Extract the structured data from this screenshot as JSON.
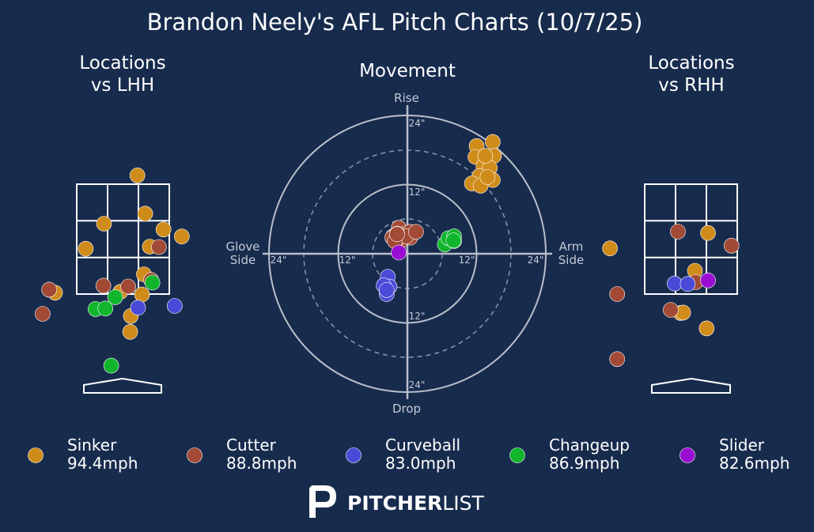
{
  "title": "Brandon Neely's AFL Pitch Charts (10/7/25)",
  "panels": {
    "lhh_title": [
      "Locations",
      "vs LHH"
    ],
    "movement_title": "Movement",
    "rhh_title": [
      "Locations",
      "vs RHH"
    ]
  },
  "movement_axes": {
    "top": "Rise",
    "bottom": "Drop",
    "left": [
      "Glove",
      "Side"
    ],
    "right": [
      "Arm",
      "Side"
    ],
    "ring_labels": [
      "12\"",
      "24\""
    ]
  },
  "colors": {
    "background": "#172b4d",
    "Sinker": "#d08c1a",
    "Cutter": "#a24a35",
    "Curveball": "#4a4ad8",
    "Changeup": "#10b52c",
    "Slider": "#9a0ed4"
  },
  "legend": [
    {
      "pitch": "Sinker",
      "velo": "94.4mph"
    },
    {
      "pitch": "Cutter",
      "velo": "88.8mph"
    },
    {
      "pitch": "Curveball",
      "velo": "83.0mph"
    },
    {
      "pitch": "Changeup",
      "velo": "86.9mph"
    },
    {
      "pitch": "Slider",
      "velo": "82.6mph"
    }
  ],
  "brand": {
    "bold": "PITCHER",
    "light": "LIST"
  },
  "chart_data": [
    {
      "type": "scatter",
      "title": "Locations vs LHH",
      "x_units": "feet (catcher view, horizontal)",
      "y_units": "feet (height)",
      "series": [
        {
          "name": "Sinker",
          "points": [
            [
              0.22,
              4.2
            ],
            [
              0.34,
              3.33
            ],
            [
              -0.29,
              3.1
            ],
            [
              0.62,
              2.97
            ],
            [
              0.9,
              2.81
            ],
            [
              -0.57,
              2.53
            ],
            [
              0.41,
              2.58
            ],
            [
              0.32,
              1.95
            ],
            [
              0.29,
              1.49
            ],
            [
              -0.04,
              1.55
            ],
            [
              -1.04,
              1.53
            ],
            [
              0.12,
              1.0
            ],
            [
              0.11,
              0.64
            ]
          ]
        },
        {
          "name": "Cutter",
          "points": [
            [
              0.55,
              2.57
            ],
            [
              0.43,
              1.82
            ],
            [
              -0.3,
              1.69
            ],
            [
              -1.13,
              1.6
            ],
            [
              0.08,
              1.67
            ],
            [
              -1.23,
              1.05
            ]
          ]
        },
        {
          "name": "Curveball",
          "points": [
            [
              0.79,
              1.23
            ],
            [
              0.23,
              1.19
            ]
          ]
        },
        {
          "name": "Changeup",
          "points": [
            [
              0.45,
              1.76
            ],
            [
              -0.12,
              1.43
            ],
            [
              -0.42,
              1.16
            ],
            [
              -0.27,
              1.17
            ],
            [
              -0.18,
              -0.13
            ]
          ]
        }
      ]
    },
    {
      "type": "scatter",
      "title": "Movement",
      "x_units": "inches horizontal break (arm side positive)",
      "y_units": "inches induced vertical break",
      "rings": [
        6,
        12,
        18,
        24
      ],
      "series": [
        {
          "name": "Sinker",
          "points": [
            [
              12.0,
              18.7
            ],
            [
              14.8,
              19.4
            ],
            [
              11.8,
              16.8
            ],
            [
              13.2,
              15.2
            ],
            [
              15.0,
              17.0
            ],
            [
              14.3,
              14.9
            ],
            [
              13.5,
              17.0
            ],
            [
              12.5,
              13.5
            ],
            [
              11.2,
              12.2
            ],
            [
              14.8,
              12.8
            ],
            [
              12.7,
              11.8
            ],
            [
              13.9,
              13.3
            ]
          ]
        },
        {
          "name": "Cutter",
          "points": [
            [
              -1.5,
              4.5
            ],
            [
              -1.0,
              3.0
            ],
            [
              -0.5,
              3.5
            ],
            [
              0.5,
              3.8
            ],
            [
              -2.5,
              3.0
            ],
            [
              0.5,
              2.8
            ],
            [
              -1.2,
              2.2
            ],
            [
              -2.6,
              2.8
            ],
            [
              -1.8,
              2.5
            ],
            [
              -0.2,
              3.0
            ],
            [
              1.5,
              3.8
            ],
            [
              -1.8,
              3.5
            ],
            [
              -2.2,
              2.2
            ],
            [
              -1.8,
              3.4
            ]
          ]
        },
        {
          "name": "Curveball",
          "points": [
            [
              -3.4,
              -4.0
            ],
            [
              -3.1,
              -5.7
            ],
            [
              -4.1,
              -5.5
            ],
            [
              -3.6,
              -7.0
            ],
            [
              -3.6,
              -6.3
            ]
          ]
        },
        {
          "name": "Changeup",
          "points": [
            [
              6.5,
              1.6
            ],
            [
              7.1,
              2.7
            ],
            [
              8.1,
              2.2
            ],
            [
              8.1,
              3.0
            ],
            [
              8.0,
              2.3
            ]
          ]
        },
        {
          "name": "Slider",
          "points": [
            [
              -1.5,
              0.2
            ]
          ]
        }
      ]
    },
    {
      "type": "scatter",
      "title": "Locations vs RHH",
      "x_units": "feet (catcher view, horizontal)",
      "y_units": "feet (height)",
      "series": [
        {
          "name": "Sinker",
          "points": [
            [
              0.26,
              2.89
            ],
            [
              -1.24,
              2.54
            ],
            [
              0.06,
              2.03
            ],
            [
              -0.16,
              1.07
            ],
            [
              -0.12,
              1.08
            ],
            [
              0.24,
              0.72
            ]
          ]
        },
        {
          "name": "Cutter",
          "points": [
            [
              -0.2,
              2.92
            ],
            [
              0.62,
              2.6
            ],
            [
              -1.13,
              1.5
            ],
            [
              0.07,
              1.77
            ],
            [
              -0.31,
              1.14
            ],
            [
              -1.13,
              0.02
            ]
          ]
        },
        {
          "name": "Curveball",
          "points": [
            [
              -0.25,
              1.74
            ],
            [
              -0.05,
              1.73
            ],
            [
              1.6,
              1.8
            ]
          ]
        },
        {
          "name": "Slider",
          "points": [
            [
              0.26,
              1.81
            ]
          ]
        }
      ]
    }
  ]
}
